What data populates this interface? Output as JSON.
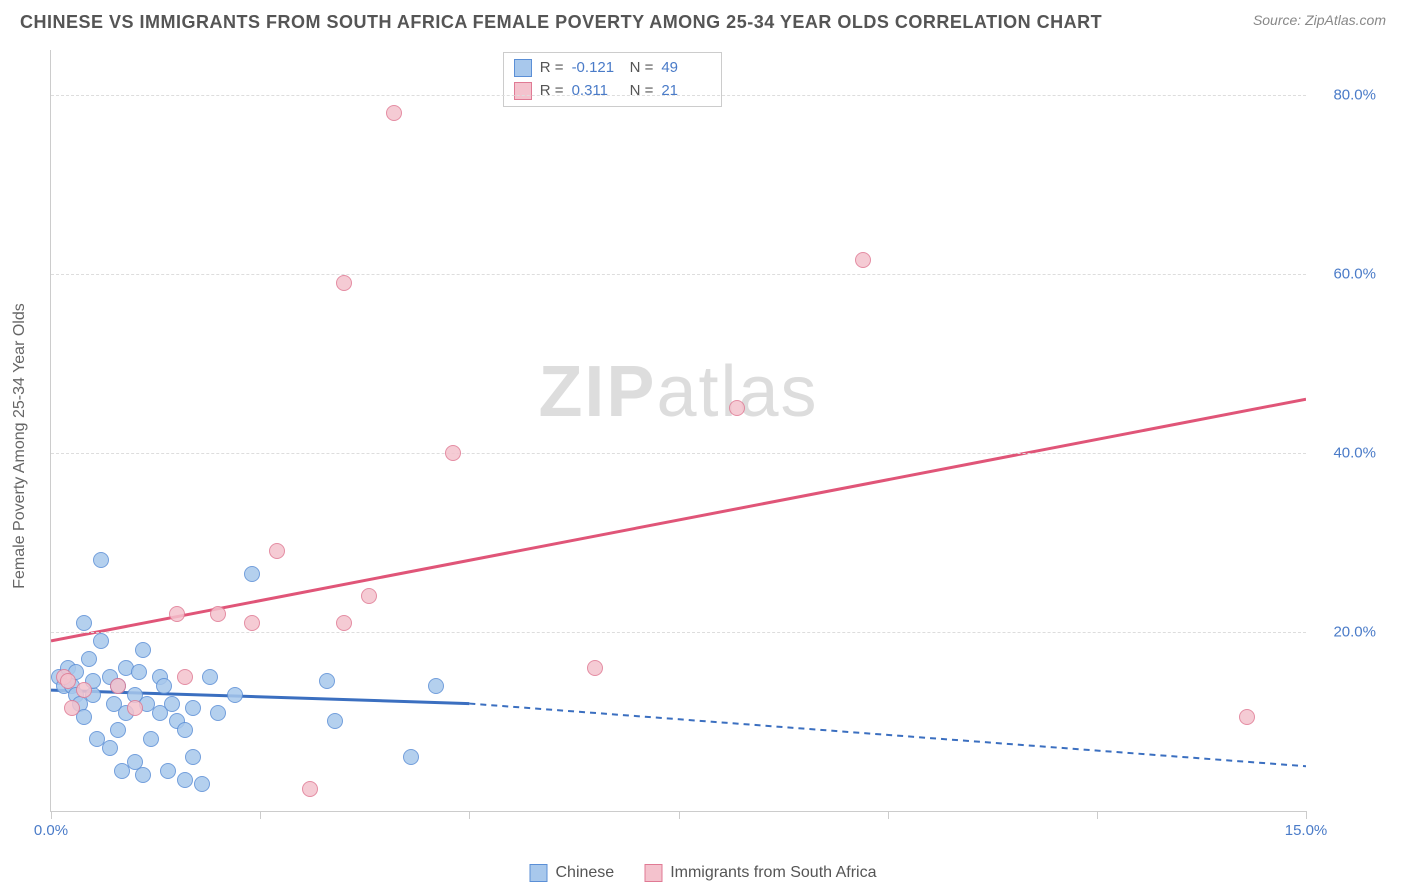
{
  "title": "CHINESE VS IMMIGRANTS FROM SOUTH AFRICA FEMALE POVERTY AMONG 25-34 YEAR OLDS CORRELATION CHART",
  "source": "Source: ZipAtlas.com",
  "watermark_zip": "ZIP",
  "watermark_atlas": "atlas",
  "ylabel": "Female Poverty Among 25-34 Year Olds",
  "chart": {
    "type": "scatter",
    "xlim": [
      0,
      15
    ],
    "ylim": [
      0,
      85
    ],
    "xtick_label_left": "0.0%",
    "xtick_label_right": "15.0%",
    "xticks": [
      0,
      2.5,
      5,
      7.5,
      10,
      12.5,
      15
    ],
    "yticks": [
      20,
      40,
      60,
      80
    ],
    "ytick_labels": [
      "20.0%",
      "40.0%",
      "60.0%",
      "80.0%"
    ],
    "grid_color": "#dddddd",
    "background": "#ffffff",
    "marker_radius": 8,
    "series": [
      {
        "name": "Chinese",
        "fill": "#a8c8ec",
        "stroke": "#5b8fd6",
        "R": "-0.121",
        "N": "49",
        "trend": {
          "x1": 0,
          "y1": 13.5,
          "x2": 5,
          "y2": 12,
          "x2_ext": 15,
          "y2_ext": 5,
          "color": "#3b6fc0",
          "dash_after": 5
        },
        "points": [
          [
            0.1,
            15
          ],
          [
            0.15,
            14
          ],
          [
            0.2,
            16
          ],
          [
            0.25,
            14
          ],
          [
            0.3,
            13
          ],
          [
            0.3,
            15.5
          ],
          [
            0.35,
            12
          ],
          [
            0.4,
            10.5
          ],
          [
            0.4,
            21
          ],
          [
            0.45,
            17
          ],
          [
            0.5,
            13
          ],
          [
            0.5,
            14.5
          ],
          [
            0.55,
            8
          ],
          [
            0.6,
            19
          ],
          [
            0.6,
            28
          ],
          [
            0.7,
            15
          ],
          [
            0.7,
            7
          ],
          [
            0.75,
            12
          ],
          [
            0.8,
            14
          ],
          [
            0.8,
            9
          ],
          [
            0.85,
            4.5
          ],
          [
            0.9,
            16
          ],
          [
            0.9,
            11
          ],
          [
            1.0,
            13
          ],
          [
            1.0,
            5.5
          ],
          [
            1.05,
            15.5
          ],
          [
            1.1,
            4
          ],
          [
            1.1,
            18
          ],
          [
            1.15,
            12
          ],
          [
            1.2,
            8
          ],
          [
            1.3,
            11
          ],
          [
            1.3,
            15
          ],
          [
            1.35,
            14
          ],
          [
            1.4,
            4.5
          ],
          [
            1.45,
            12
          ],
          [
            1.5,
            10
          ],
          [
            1.6,
            3.5
          ],
          [
            1.6,
            9
          ],
          [
            1.7,
            6
          ],
          [
            1.7,
            11.5
          ],
          [
            1.8,
            3
          ],
          [
            1.9,
            15
          ],
          [
            2.0,
            11
          ],
          [
            2.2,
            13
          ],
          [
            2.4,
            26.5
          ],
          [
            3.3,
            14.5
          ],
          [
            3.4,
            10
          ],
          [
            4.3,
            6
          ],
          [
            4.6,
            14
          ]
        ]
      },
      {
        "name": "Immigrants from South Africa",
        "fill": "#f4c2cd",
        "stroke": "#e07a94",
        "R": "0.311",
        "N": "21",
        "trend": {
          "x1": 0,
          "y1": 19,
          "x2": 15,
          "y2": 46,
          "color": "#e05578"
        },
        "points": [
          [
            0.15,
            15
          ],
          [
            0.2,
            14.5
          ],
          [
            0.25,
            11.5
          ],
          [
            0.4,
            13.5
          ],
          [
            0.8,
            14
          ],
          [
            1.0,
            11.5
          ],
          [
            1.5,
            22
          ],
          [
            1.6,
            15
          ],
          [
            2.0,
            22
          ],
          [
            2.4,
            21
          ],
          [
            2.7,
            29
          ],
          [
            3.1,
            2.5
          ],
          [
            3.5,
            21
          ],
          [
            3.5,
            59
          ],
          [
            3.8,
            24
          ],
          [
            4.1,
            78
          ],
          [
            4.8,
            40
          ],
          [
            6.5,
            16
          ],
          [
            8.2,
            45
          ],
          [
            9.7,
            61.5
          ],
          [
            14.3,
            10.5
          ]
        ]
      }
    ]
  },
  "legend": {
    "series1_label": "Chinese",
    "series2_label": "Immigrants from South Africa"
  },
  "stats": {
    "r_label": "R =",
    "n_label": "N ="
  }
}
